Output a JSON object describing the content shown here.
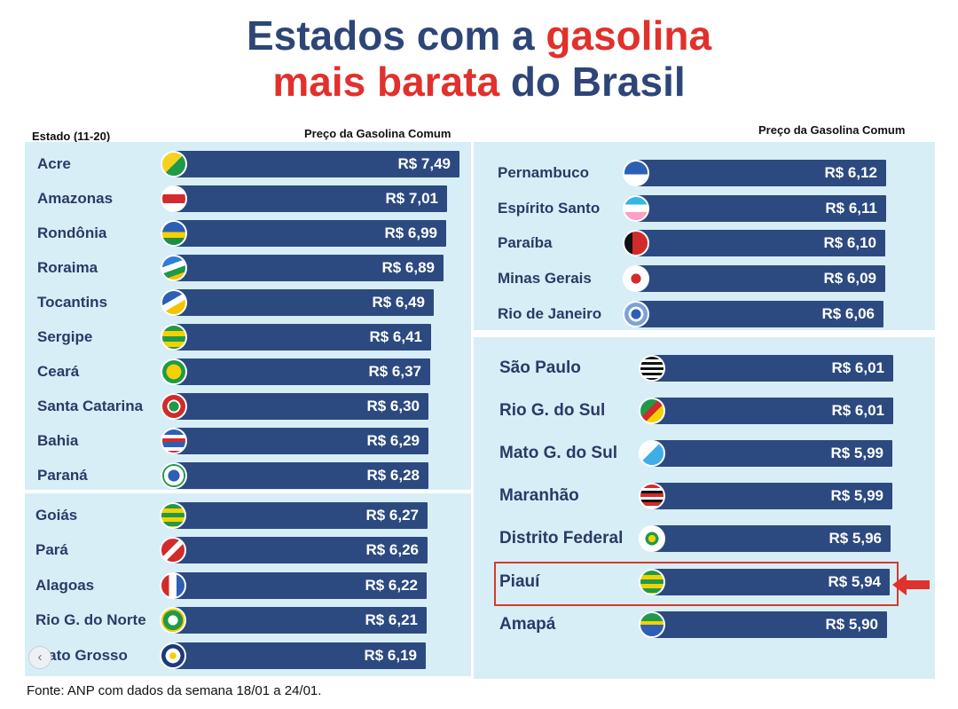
{
  "title": {
    "line1_part1": "Estados com a ",
    "line1_part2": "gasolina",
    "line2_part1": "mais barata",
    "line2_part2": " do Brasil"
  },
  "headers": {
    "left_state": "Estado (11-20)",
    "left_price": "Preço da Gasolina Comum",
    "right_price": "Preço da Gasolina Comum"
  },
  "footer": "Fonte: ANP com dados da semana 18/01 a 24/01.",
  "highlighted_state": "Piauí",
  "colors": {
    "title_blue": "#2d4677",
    "title_red": "#e0312c",
    "bar": "#2c4a80",
    "panel": "#d7eef7",
    "highlight": "#d63a2a"
  },
  "chart_data": {
    "type": "bar",
    "orientation": "horizontal",
    "categories": [
      "Acre",
      "Amazonas",
      "Rondônia",
      "Roraima",
      "Tocantins",
      "Sergipe",
      "Ceará",
      "Santa Catarina",
      "Bahia",
      "Paraná",
      "Goiás",
      "Pará",
      "Alagoas",
      "Rio G. do Norte",
      "Mato Grosso",
      "Pernambuco",
      "Espírito Santo",
      "Paraíba",
      "Minas Gerais",
      "Rio de Janeiro",
      "São Paulo",
      "Rio G. do Sul",
      "Mato G. do Sul",
      "Maranhão",
      "Distrito Federal",
      "Piauí",
      "Amapá"
    ],
    "values": [
      7.49,
      7.01,
      6.99,
      6.89,
      6.49,
      6.41,
      6.37,
      6.3,
      6.29,
      6.28,
      6.27,
      6.26,
      6.22,
      6.21,
      6.19,
      6.12,
      6.11,
      6.1,
      6.09,
      6.06,
      6.01,
      6.01,
      5.99,
      5.99,
      5.96,
      5.94,
      5.9
    ],
    "labels": [
      "R$ 7,49",
      "R$ 7,01",
      "R$ 6,99",
      "R$ 6,89",
      "R$ 6,49",
      "R$ 6,41",
      "R$ 6,37",
      "R$ 6,30",
      "R$ 6,29",
      "R$ 6,28",
      "R$ 6,27",
      "R$ 6,26",
      "R$ 6,22",
      "R$ 6,21",
      "R$ 6,19",
      "R$ 6,12",
      "R$ 6,11",
      "R$ 6,10",
      "R$ 6,09",
      "R$ 6,06",
      "R$ 6,01",
      "R$ 6,01",
      "R$ 5,99",
      "R$ 5,99",
      "R$ 5,96",
      "R$ 5,94",
      "R$ 5,90"
    ],
    "flags": [
      "acre-flag-icon",
      "amazonas-flag-icon",
      "rondonia-flag-icon",
      "roraima-flag-icon",
      "tocantins-flag-icon",
      "sergipe-flag-icon",
      "ceara-flag-icon",
      "santa-catarina-flag-icon",
      "bahia-flag-icon",
      "parana-flag-icon",
      "goias-flag-icon",
      "para-flag-icon",
      "alagoas-flag-icon",
      "rio-grande-do-norte-flag-icon",
      "mato-grosso-flag-icon",
      "pernambuco-flag-icon",
      "espirito-santo-flag-icon",
      "paraiba-flag-icon",
      "minas-gerais-flag-icon",
      "rio-de-janeiro-flag-icon",
      "sao-paulo-flag-icon",
      "rio-grande-do-sul-flag-icon",
      "mato-grosso-do-sul-flag-icon",
      "maranhao-flag-icon",
      "distrito-federal-flag-icon",
      "piaui-flag-icon",
      "amapa-flag-icon"
    ],
    "title": "Estados com a gasolina mais barata do Brasil",
    "xlabel": "Preço da Gasolina Comum",
    "ylabel": "Estado (11-20)",
    "currency": "R$"
  }
}
